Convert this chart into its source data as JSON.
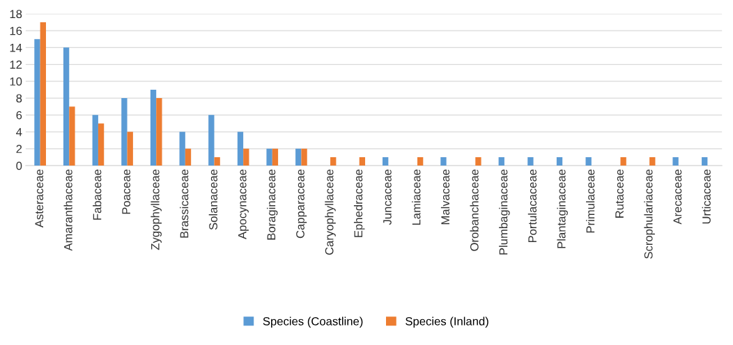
{
  "chart_data": {
    "type": "bar",
    "categories": [
      "Asteraceae",
      "Amaranthaceae",
      "Fabaceae",
      "Poaceae",
      "Zygophyllaceae",
      "Brassicaceae",
      "Solanaceae",
      "Apocynaceae",
      "Boraginaceae",
      "Capparaceae",
      "Caryophyllaceae",
      "Ephedraceae",
      "Juncaceae",
      "Lamiaceae",
      "Malvaceae",
      "Orobanchaceae",
      "Plumbaginaceae",
      "Portulacaceae",
      "Plantaginaceae",
      "Primulaceae",
      "Rutaceae",
      "Scrophulariaceae",
      "Arecaceae",
      "Urticaceae"
    ],
    "series": [
      {
        "name": "Species (Coastline)",
        "color": "#5b9bd5",
        "values": [
          15,
          14,
          6,
          8,
          9,
          4,
          6,
          4,
          2,
          2,
          0,
          0,
          1,
          0,
          1,
          0,
          1,
          1,
          1,
          1,
          0,
          0,
          1,
          1
        ]
      },
      {
        "name": "Species (Inland)",
        "color": "#ed7d31",
        "values": [
          17,
          7,
          5,
          4,
          8,
          2,
          1,
          2,
          2,
          2,
          1,
          1,
          0,
          1,
          0,
          1,
          0,
          0,
          0,
          0,
          1,
          1,
          0,
          0
        ]
      }
    ],
    "ylim": [
      0,
      18
    ],
    "yticks": [
      0,
      2,
      4,
      6,
      8,
      10,
      12,
      14,
      16,
      18
    ],
    "grid": "y",
    "legend": "bottom"
  }
}
